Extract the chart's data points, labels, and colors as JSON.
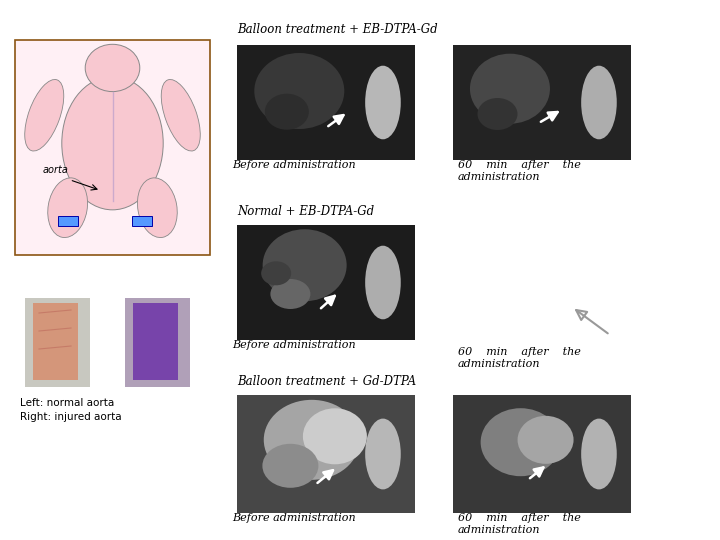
{
  "title_row1": "Balloon treatment + EB-DTPA-Gd",
  "title_row2": "Normal + EB-DTPA-Gd",
  "title_row3": "Balloon treatment + Gd-DTPA",
  "label_before": "Before administration",
  "label_60min_1": "60    min    after    the",
  "label_60min_2": "administration",
  "label_left_right_1": "Left: normal aorta",
  "label_left_right_2": "Right: injured aorta",
  "label_aorta": "aorta",
  "bg_color": "#ffffff",
  "text_color": "#000000",
  "font_size_title": 8.5,
  "font_size_label": 8,
  "font_size_small": 7.5
}
